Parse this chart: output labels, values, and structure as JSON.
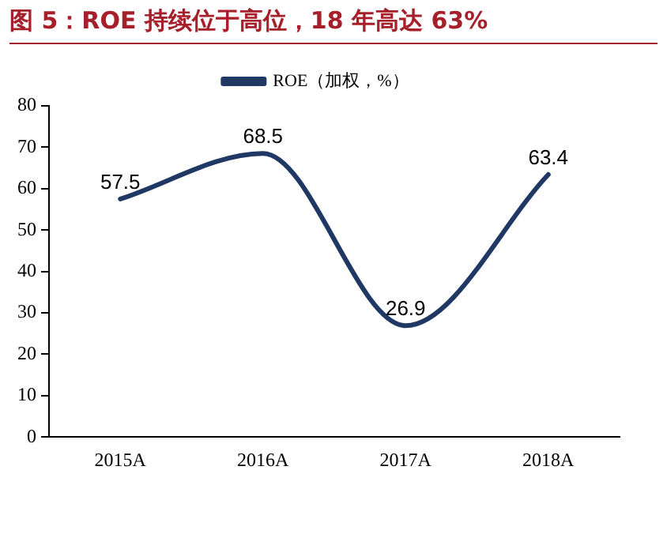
{
  "chart_data": {
    "type": "line",
    "title": "图 5：ROE 持续位于高位，18 年高达 63%",
    "categories": [
      "2015A",
      "2016A",
      "2017A",
      "2018A"
    ],
    "series": [
      {
        "name": "ROE（加权，%）",
        "color": "#1f3864",
        "values": [
          57.5,
          68.5,
          26.9,
          63.4
        ]
      }
    ],
    "ylim": [
      0,
      80
    ],
    "yticks": [
      0,
      10,
      20,
      30,
      40,
      50,
      60,
      70,
      80
    ],
    "grid": false,
    "legend": "top",
    "marker": "none",
    "line_style": "solid",
    "data_labels": true
  }
}
